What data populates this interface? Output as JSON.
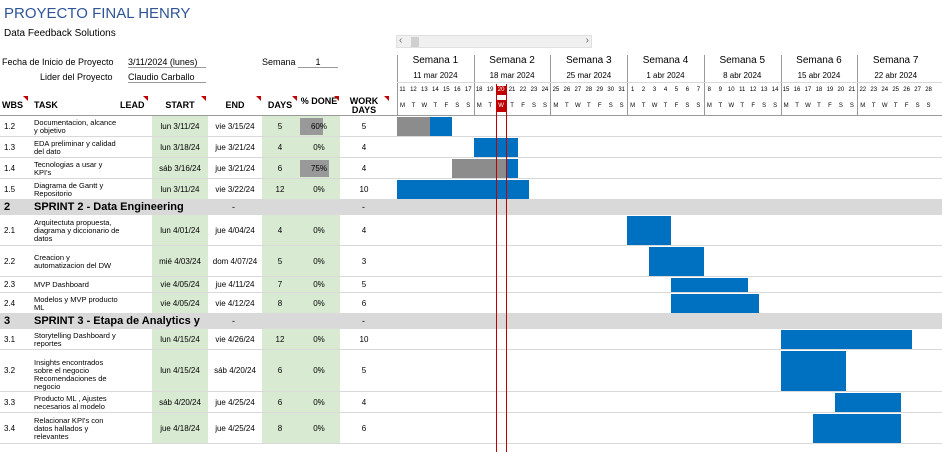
{
  "title": "PROYECTO FINAL HENRY",
  "subtitle": "Data Feedback Solutions",
  "info": {
    "start_label": "Fecha de Inicio de Proyecto",
    "start_value": "3/11/2024 (lunes)",
    "lead_label": "Lider del Proyecto",
    "lead_value": "Claudio Carballo",
    "week_label": "Semana",
    "week_value": "1"
  },
  "columns": {
    "wbs": "WBS",
    "task": "TASK",
    "lead": "LEAD",
    "start": "START",
    "end": "END",
    "days": "DAYS",
    "pct": "% DONE",
    "work_days": "WORK DAYS"
  },
  "weeks": [
    {
      "name": "Semana 1",
      "date": "11 mar 2024"
    },
    {
      "name": "Semana 2",
      "date": "18 mar 2024"
    },
    {
      "name": "Semana 3",
      "date": "25 mar 2024"
    },
    {
      "name": "Semana 4",
      "date": "1 abr 2024"
    },
    {
      "name": "Semana 5",
      "date": "8 abr 2024"
    },
    {
      "name": "Semana 6",
      "date": "15 abr 2024"
    },
    {
      "name": "Semana 7",
      "date": "22 abr 2024"
    }
  ],
  "day_numbers": [
    "11",
    "12",
    "13",
    "14",
    "15",
    "16",
    "17",
    "18",
    "19",
    "20",
    "21",
    "22",
    "23",
    "24",
    "25",
    "26",
    "27",
    "28",
    "29",
    "30",
    "31",
    "1",
    "2",
    "3",
    "4",
    "5",
    "6",
    "7",
    "8",
    "9",
    "10",
    "11",
    "12",
    "13",
    "14",
    "15",
    "16",
    "17",
    "18",
    "19",
    "20",
    "21",
    "22",
    "23",
    "24",
    "25",
    "26",
    "27",
    "28"
  ],
  "day_letters": [
    "M",
    "T",
    "W",
    "T",
    "F",
    "S",
    "S",
    "M",
    "T",
    "W",
    "T",
    "F",
    "S",
    "S",
    "M",
    "T",
    "W",
    "T",
    "F",
    "S",
    "S",
    "M",
    "T",
    "W",
    "T",
    "F",
    "S",
    "S",
    "M",
    "T",
    "W",
    "T",
    "F",
    "S",
    "S",
    "M",
    "T",
    "W",
    "T",
    "F",
    "S",
    "S",
    "M",
    "T",
    "W",
    "T",
    "F",
    "S",
    "S"
  ],
  "today_index": 9,
  "rows": [
    {
      "type": "task",
      "wbs": "1.2",
      "task": "Documentacion, alcance y objetivo",
      "lead": "",
      "start": "lun 3/11/24",
      "end": "vie 3/15/24",
      "days": "5",
      "pct": "60%",
      "pct_value": 0.6,
      "work_days": "5",
      "bar_start": 0,
      "bar_days": 5
    },
    {
      "type": "task",
      "wbs": "1.3",
      "task": "EDA preliminar y calidad del dato",
      "lead": "",
      "start": "lun 3/18/24",
      "end": "jue 3/21/24",
      "days": "4",
      "pct": "0%",
      "pct_value": 0,
      "work_days": "4",
      "bar_start": 7,
      "bar_days": 4
    },
    {
      "type": "task",
      "wbs": "1.4",
      "task": "Tecnologias a usar y KPI's",
      "lead": "",
      "start": "sáb 3/16/24",
      "end": "jue 3/21/24",
      "days": "6",
      "pct": "75%",
      "pct_value": 0.75,
      "work_days": "4",
      "bar_start": 5,
      "bar_days": 6
    },
    {
      "type": "task",
      "wbs": "1.5",
      "task": "Diagrama de Gantt y Repositorio",
      "lead": "",
      "start": "lun 3/11/24",
      "end": "vie 3/22/24",
      "days": "12",
      "pct": "0%",
      "pct_value": 0,
      "work_days": "10",
      "bar_start": 0,
      "bar_days": 12
    },
    {
      "type": "section",
      "wbs": "2",
      "task": "SPRINT 2 - Data Engineering",
      "end": "-",
      "work_days": "-"
    },
    {
      "type": "task",
      "wbs": "2.1",
      "task": "Arquitectuta propuesta, diagrama y diccionario de datos",
      "lead": "",
      "start": "lun 4/01/24",
      "end": "jue 4/04/24",
      "days": "4",
      "pct": "0%",
      "pct_value": 0,
      "work_days": "4",
      "bar_start": 21,
      "bar_days": 4
    },
    {
      "type": "task",
      "wbs": "2.2",
      "task": "Creacion y automatizacion del DW",
      "lead": "",
      "start": "mié 4/03/24",
      "end": "dom 4/07/24",
      "days": "5",
      "pct": "0%",
      "pct_value": 0,
      "work_days": "3",
      "bar_start": 23,
      "bar_days": 5
    },
    {
      "type": "task",
      "wbs": "2.3",
      "task": "MVP Dashboard",
      "lead": "",
      "start": "vie 4/05/24",
      "end": "jue 4/11/24",
      "days": "7",
      "pct": "0%",
      "pct_value": 0,
      "work_days": "5",
      "bar_start": 25,
      "bar_days": 7
    },
    {
      "type": "task",
      "wbs": "2.4",
      "task": "Modelos y MVP producto ML",
      "lead": "",
      "start": "vie 4/05/24",
      "end": "vie 4/12/24",
      "days": "8",
      "pct": "0%",
      "pct_value": 0,
      "work_days": "6",
      "bar_start": 25,
      "bar_days": 8
    },
    {
      "type": "section",
      "wbs": "3",
      "task": "SPRINT 3 - Etapa de Analytics y",
      "end": "-",
      "work_days": "-"
    },
    {
      "type": "task",
      "wbs": "3.1",
      "task": "Storytelling Dashboard y reportes",
      "lead": "",
      "start": "lun 4/15/24",
      "end": "vie 4/26/24",
      "days": "12",
      "pct": "0%",
      "pct_value": 0,
      "work_days": "10",
      "bar_start": 35,
      "bar_days": 12
    },
    {
      "type": "task",
      "wbs": "3.2",
      "task": "Insights encontrados sobre el negocio Recomendaciones de negocio",
      "lead": "",
      "start": "lun 4/15/24",
      "end": "sáb 4/20/24",
      "days": "6",
      "pct": "0%",
      "pct_value": 0,
      "work_days": "5",
      "bar_start": 35,
      "bar_days": 6
    },
    {
      "type": "task",
      "wbs": "3.3",
      "task": "Producto ML , Ajustes necesarios al modelo",
      "lead": "",
      "start": "sáb 4/20/24",
      "end": "jue 4/25/24",
      "days": "6",
      "pct": "0%",
      "pct_value": 0,
      "work_days": "4",
      "bar_start": 40,
      "bar_days": 6
    },
    {
      "type": "task",
      "wbs": "3.4",
      "task": "Relacionar KPI's con datos hallados y relevantes",
      "lead": "",
      "start": "jue 4/18/24",
      "end": "jue 4/25/24",
      "days": "8",
      "pct": "0%",
      "pct_value": 0,
      "work_days": "6",
      "bar_start": 38,
      "bar_days": 8
    }
  ]
}
